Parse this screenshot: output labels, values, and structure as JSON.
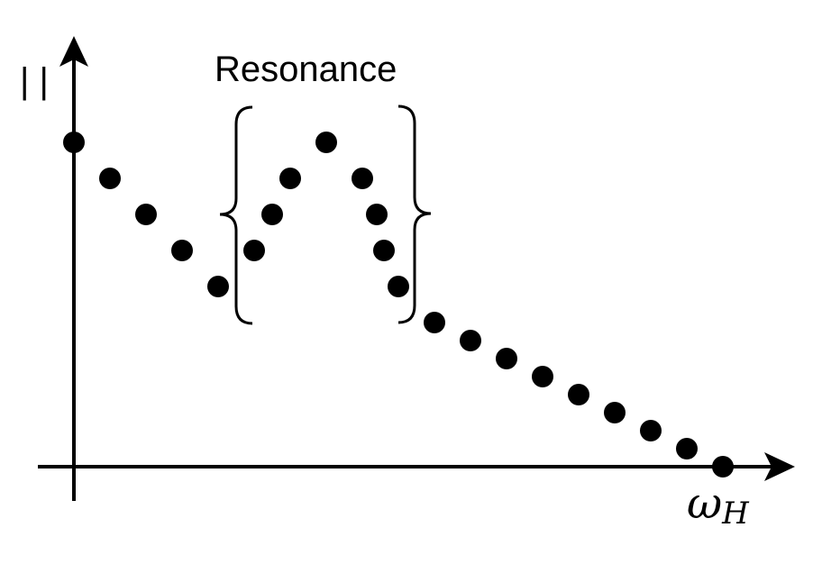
{
  "chart_data": {
    "type": "scatter",
    "title": "",
    "xlabel": "ω",
    "xlabel_subscript": "H",
    "ylabel": "| |",
    "grid": false,
    "legend": "none",
    "annotations": [
      {
        "text": "Resonance",
        "x_range": [
          5,
          10
        ],
        "y": 9
      }
    ],
    "xlim": [
      0,
      18
    ],
    "ylim": [
      0,
      9.5
    ],
    "series": [
      {
        "color": "#000000",
        "points": [
          {
            "x": 0,
            "y": 9
          },
          {
            "x": 1,
            "y": 8
          },
          {
            "x": 2,
            "y": 7
          },
          {
            "x": 3,
            "y": 6
          },
          {
            "x": 4,
            "y": 5
          },
          {
            "x": 5,
            "y": 6
          },
          {
            "x": 5.5,
            "y": 7
          },
          {
            "x": 6,
            "y": 8
          },
          {
            "x": 7,
            "y": 9
          },
          {
            "x": 8,
            "y": 8
          },
          {
            "x": 8.4,
            "y": 7
          },
          {
            "x": 8.6,
            "y": 6
          },
          {
            "x": 9,
            "y": 5
          },
          {
            "x": 10,
            "y": 4
          },
          {
            "x": 11,
            "y": 3.5
          },
          {
            "x": 12,
            "y": 3
          },
          {
            "x": 13,
            "y": 2.5
          },
          {
            "x": 14,
            "y": 2
          },
          {
            "x": 15,
            "y": 1.5
          },
          {
            "x": 16,
            "y": 1
          },
          {
            "x": 17,
            "y": 0.5
          },
          {
            "x": 18,
            "y": 0
          }
        ]
      }
    ]
  }
}
